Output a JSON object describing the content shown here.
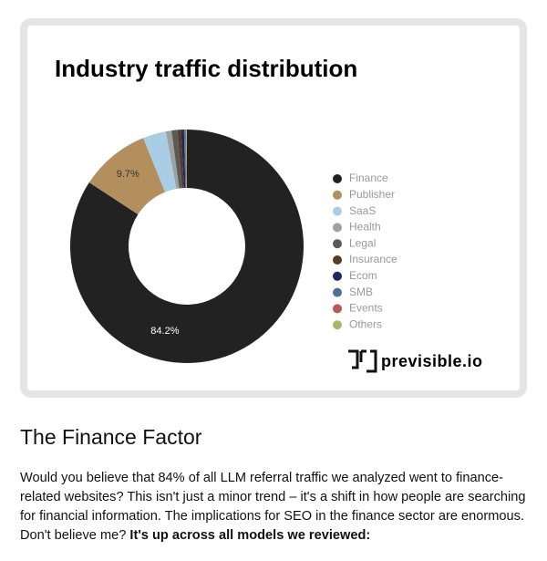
{
  "chart_data": {
    "type": "donut",
    "title": "Industry traffic distribution",
    "categories": [
      "Finance",
      "Publisher",
      "SaaS",
      "Health",
      "Legal",
      "Insurance",
      "Ecom",
      "SMB",
      "Events",
      "Others"
    ],
    "values": [
      84.2,
      9.7,
      3.2,
      0.8,
      0.8,
      0.5,
      0.4,
      0.2,
      0.1,
      0.1
    ],
    "value_labels": [
      "84.2%",
      "9.7%",
      null,
      null,
      null,
      null,
      null,
      null,
      null,
      null
    ],
    "colors": [
      "#222222",
      "#b38f5e",
      "#a8cde4",
      "#a0a0a0",
      "#5a5a5a",
      "#5a3a22",
      "#1c2a5e",
      "#4e6f9e",
      "#b85a5a",
      "#a8b86a"
    ],
    "brand": "previsible.io"
  },
  "article": {
    "heading": "The Finance Factor",
    "paragraph": [
      "Would you believe that 84% of all LLM referral traffic we analyzed went to finance-related websites? This isn't just a minor trend – it's a shift in how people are searching for financial information. The implications for SEO in the finance sector are enormous. Don't believe me? ",
      "It's up across all models we reviewed:"
    ]
  }
}
